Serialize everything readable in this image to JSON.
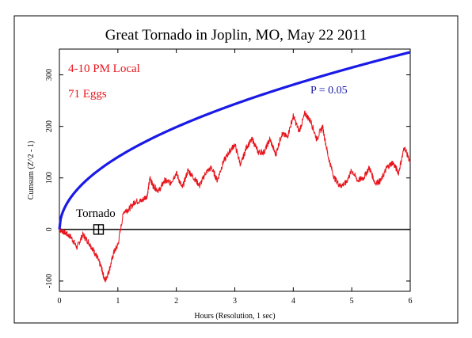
{
  "chart_data": {
    "type": "line",
    "title": "Great Tornado in Joplin, MO, May 22 2011",
    "xlabel": "Hours (Resolution, 1 sec)",
    "ylabel": "Cumsum (Z^2 - 1)",
    "xlim": [
      0,
      6
    ],
    "ylim": [
      -120,
      350
    ],
    "x_ticks": [
      0,
      1,
      2,
      3,
      4,
      5,
      6
    ],
    "y_ticks": [
      -100,
      0,
      100,
      200,
      300
    ],
    "grid": false,
    "annotations": {
      "time_window": "4-10 PM Local",
      "eggs": "71 Eggs",
      "p_label": "P = 0.05",
      "event_label": "Tornado"
    },
    "event_marker": {
      "x": 0.67,
      "y": 0
    },
    "baseline": 0,
    "series": [
      {
        "role": "p05-envelope",
        "color": "#1a1ae6",
        "function": "sqrt",
        "x": [
          0,
          0.05,
          0.1,
          0.2,
          0.5,
          1,
          2,
          3,
          4,
          5,
          6
        ],
        "values": [
          0,
          32,
          45,
          64,
          101,
          143,
          202,
          247,
          285,
          319,
          344
        ]
      },
      {
        "role": "cumulative-deviation",
        "color": "#e8141c",
        "x": [
          0,
          0.08,
          0.2,
          0.3,
          0.4,
          0.5,
          0.58,
          0.65,
          0.72,
          0.78,
          0.85,
          0.93,
          1.0,
          1.1,
          1.2,
          1.3,
          1.4,
          1.5,
          1.55,
          1.6,
          1.7,
          1.8,
          1.9,
          2.0,
          2.1,
          2.2,
          2.3,
          2.4,
          2.5,
          2.6,
          2.7,
          2.8,
          2.9,
          3.0,
          3.1,
          3.2,
          3.3,
          3.4,
          3.5,
          3.6,
          3.7,
          3.8,
          3.9,
          4.0,
          4.1,
          4.2,
          4.3,
          4.4,
          4.5,
          4.6,
          4.7,
          4.8,
          4.9,
          5.0,
          5.1,
          5.2,
          5.3,
          5.4,
          5.5,
          5.6,
          5.7,
          5.8,
          5.9,
          6.0
        ],
        "values": [
          0,
          -5,
          -15,
          -35,
          -10,
          -25,
          -40,
          -55,
          -75,
          -100,
          -80,
          -45,
          -30,
          35,
          40,
          55,
          55,
          65,
          100,
          85,
          75,
          95,
          90,
          110,
          80,
          115,
          100,
          85,
          110,
          120,
          95,
          130,
          150,
          165,
          125,
          160,
          175,
          150,
          150,
          175,
          145,
          185,
          180,
          220,
          190,
          225,
          210,
          175,
          200,
          140,
          100,
          85,
          90,
          115,
          95,
          100,
          120,
          90,
          95,
          120,
          130,
          110,
          160,
          130
        ]
      }
    ]
  }
}
